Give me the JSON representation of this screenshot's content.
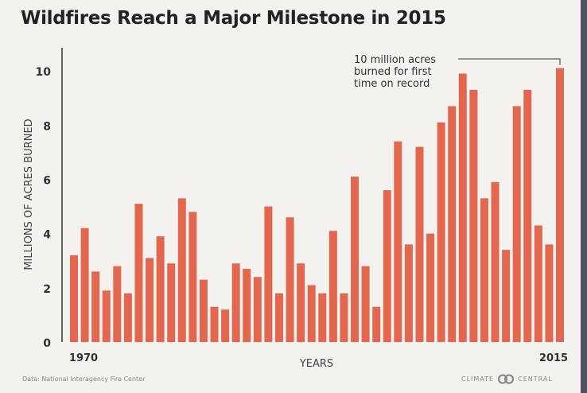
{
  "chart_data": {
    "type": "bar",
    "title": "Wildfires Reach a Major Milestone in 2015",
    "xlabel": "YEARS",
    "ylabel": "MILLIONS OF ACRES BURNED",
    "ylim": [
      0,
      11
    ],
    "yticks": [
      "0",
      "2",
      "4",
      "6",
      "8",
      "10"
    ],
    "xtick_labels": {
      "first": "1970",
      "last": "2015"
    },
    "categories": [
      1970,
      1971,
      1972,
      1973,
      1974,
      1975,
      1976,
      1977,
      1978,
      1979,
      1980,
      1981,
      1982,
      1983,
      1984,
      1985,
      1986,
      1987,
      1988,
      1989,
      1990,
      1991,
      1992,
      1993,
      1994,
      1995,
      1996,
      1997,
      1998,
      1999,
      2000,
      2001,
      2002,
      2003,
      2004,
      2005,
      2006,
      2007,
      2008,
      2009,
      2010,
      2011,
      2012,
      2013,
      2014,
      2015
    ],
    "values": [
      3.2,
      4.2,
      2.6,
      1.9,
      2.8,
      1.8,
      5.1,
      3.1,
      3.9,
      2.9,
      5.3,
      4.8,
      2.3,
      1.3,
      1.2,
      2.9,
      2.7,
      2.4,
      5.0,
      1.8,
      4.6,
      2.9,
      2.1,
      1.8,
      4.1,
      1.8,
      6.1,
      2.8,
      1.3,
      5.6,
      7.4,
      3.6,
      7.2,
      4.0,
      8.1,
      8.7,
      9.9,
      9.3,
      5.3,
      5.9,
      3.4,
      8.7,
      9.3,
      4.3,
      3.6,
      10.1
    ],
    "color": "#e2674e",
    "annotation": {
      "text_lines": [
        "10 million acres",
        "burned for first",
        "time on record"
      ],
      "target_category": 2015
    }
  },
  "footer": {
    "source": "Data: National Interagency Fire Center",
    "logo_left": "CLIMATE",
    "logo_right": "CENTRAL"
  }
}
